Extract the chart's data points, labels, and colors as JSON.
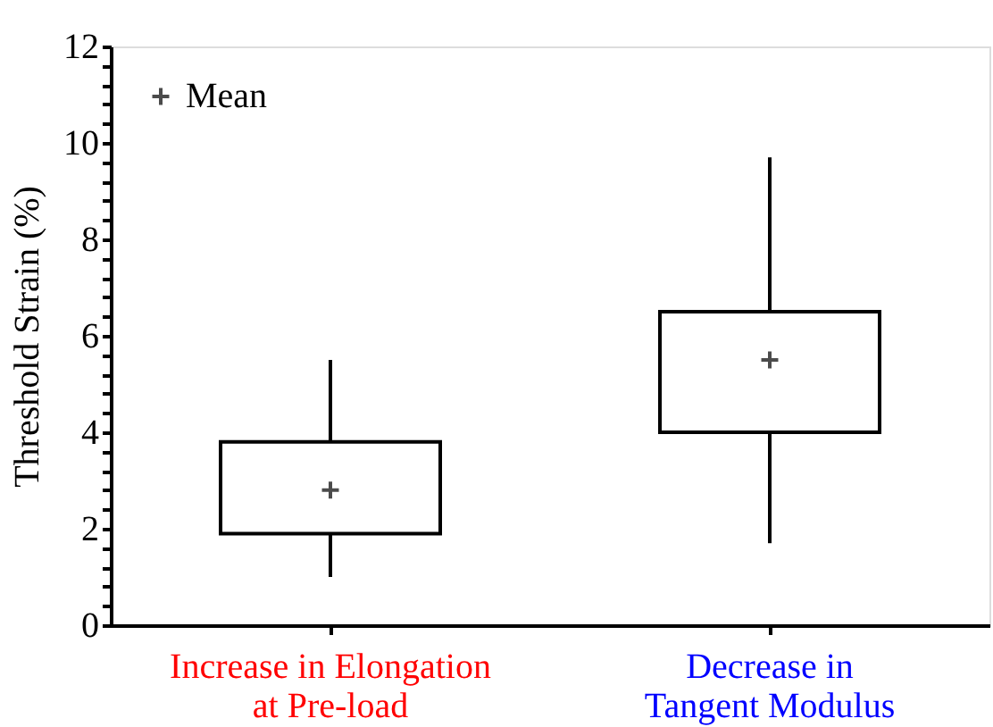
{
  "chart_data": {
    "type": "box",
    "ylabel": "Threshold Strain (%)",
    "categories": [
      "Increase in Elongation\nat Pre-load",
      "Decrease in\nTangent Modulus"
    ],
    "series": [
      {
        "color": "#000000",
        "boxes": [
          {
            "low": 1.0,
            "q1": 1.9,
            "q3": 3.8,
            "high": 5.5
          },
          {
            "low": 1.7,
            "q1": 4.0,
            "q3": 6.5,
            "high": 9.7
          }
        ]
      },
      {
        "type": "scatter",
        "name": "Mean",
        "color": "#000000",
        "marker": "cross",
        "x": [
          "Increase in Elongation\nat Pre-load",
          "Decrease in\nTangent Modulus"
        ],
        "values": [
          2.8,
          5.5
        ]
      }
    ],
    "ylim": [
      0,
      12
    ],
    "yticks": [
      0,
      {
        "value": 0.4,
        "label": null
      },
      {
        "value": 0.8,
        "label": null
      },
      {
        "value": 1.2,
        "label": null
      },
      {
        "value": 1.6,
        "label": null
      },
      2,
      {
        "value": 2.4,
        "label": null
      },
      {
        "value": 2.8,
        "label": null
      },
      {
        "value": 3.2,
        "label": null
      },
      {
        "value": 3.6,
        "label": null
      },
      4,
      {
        "value": 4.4,
        "label": null
      },
      {
        "value": 4.8,
        "label": null
      },
      {
        "value": 5.2,
        "label": null
      },
      {
        "value": 5.6,
        "label": null
      },
      6,
      {
        "value": 6.4,
        "label": null
      },
      {
        "value": 6.8,
        "label": null
      },
      {
        "value": 7.2,
        "label": null
      },
      {
        "value": 7.6,
        "label": null
      },
      8,
      {
        "value": 8.4,
        "label": null
      },
      {
        "value": 8.8,
        "label": null
      },
      {
        "value": 9.2,
        "label": null
      },
      {
        "value": 9.6,
        "label": null
      },
      10,
      {
        "value": 10.4,
        "label": null
      },
      {
        "value": 10.8,
        "label": null
      },
      {
        "value": 11.2,
        "label": null
      },
      {
        "value": 11.6,
        "label": null
      },
      12
    ],
    "grid": false,
    "legend": "top left"
  }
}
